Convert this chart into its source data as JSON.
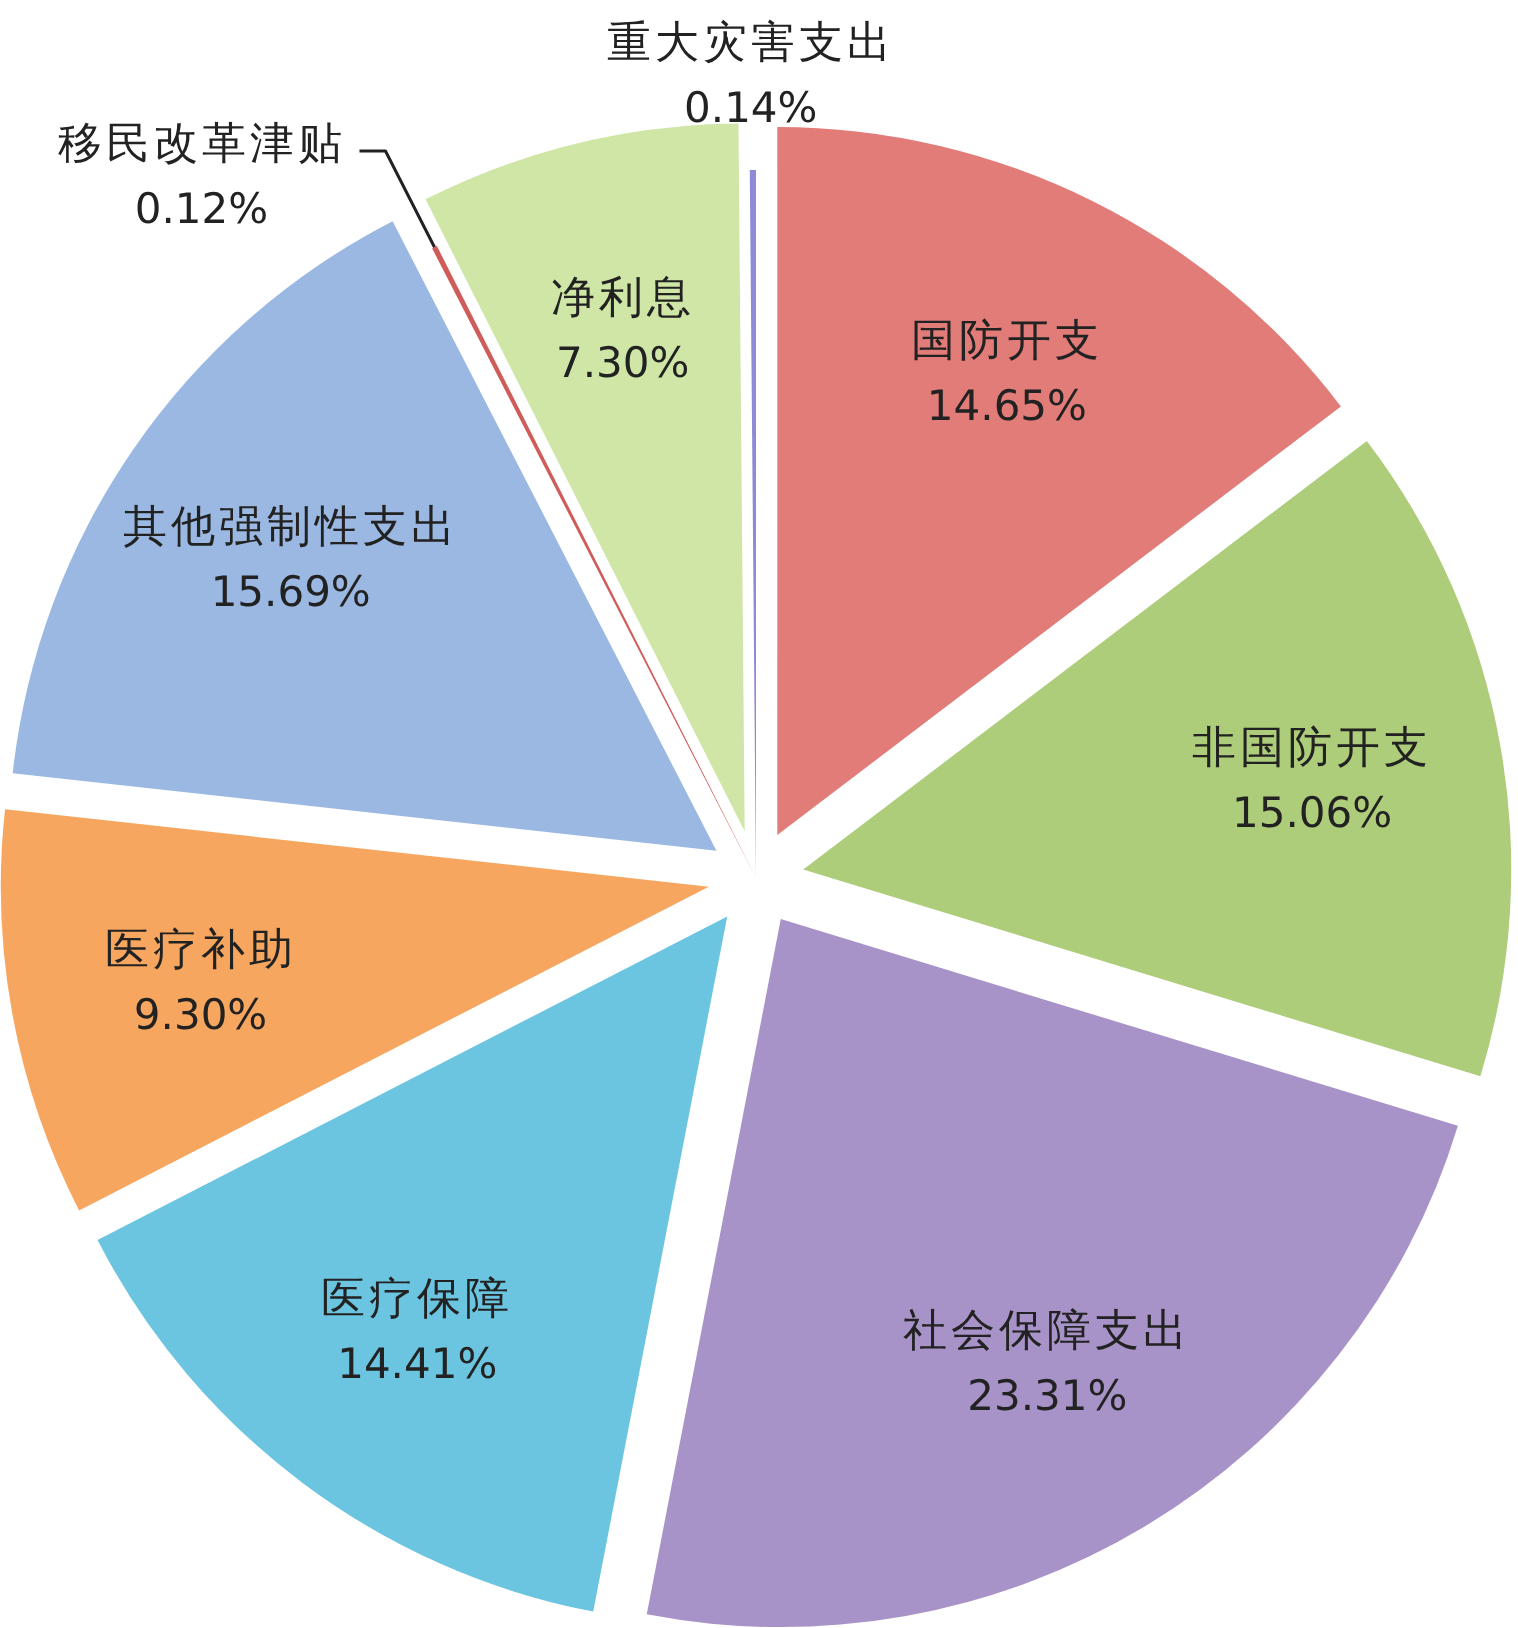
{
  "chart_data": {
    "type": "pie",
    "categories": [
      "国防开支",
      "非国防开支",
      "社会保障支出",
      "医疗保障",
      "医疗补助",
      "其他强制性支出",
      "移民改革津贴",
      "净利息",
      "重大灾害支出"
    ],
    "values": [
      14.65,
      15.06,
      23.31,
      14.41,
      9.3,
      15.69,
      0.12,
      7.3,
      0.14
    ],
    "value_labels": [
      "14.65%",
      "15.06%",
      "23.31%",
      "14.41%",
      "9.30%",
      "15.69%",
      "0.12%",
      "7.30%",
      "0.14%"
    ],
    "colors": [
      "#e27c78",
      "#aecd7a",
      "#a893c9",
      "#6cc5e0",
      "#f7a660",
      "#9ab8e2",
      "#d05c5a",
      "#cfe6a6",
      "#8e8ad6"
    ]
  }
}
